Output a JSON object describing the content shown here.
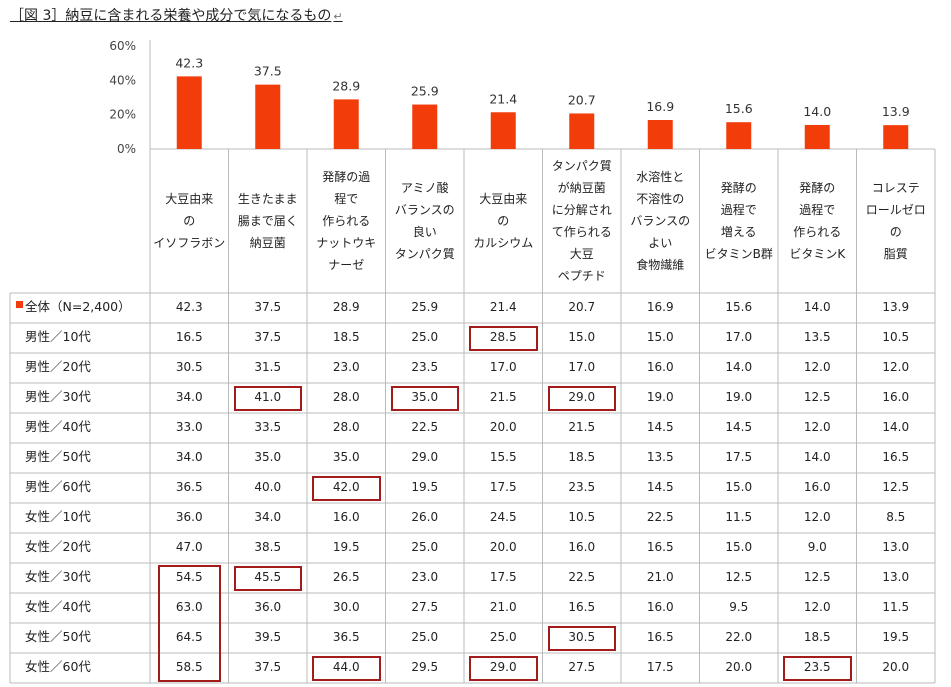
{
  "title": "［図 3］納豆に含まれる栄養や成分で気になるもの",
  "title_mark": "↵",
  "chart_data": {
    "type": "bar",
    "ylim": [
      0,
      60
    ],
    "yticks": [
      "0%",
      "20%",
      "40%",
      "60%"
    ],
    "yticks_values": [
      0,
      20,
      40,
      60
    ],
    "bar_color": "#f23c0a",
    "categories": [
      "大豆由来\nの\nイソフラボン",
      "生きたまま\n腸まで届く\n納豆菌",
      "発酵の過\n程で\n作られる\nナットウキ\nナーゼ",
      "アミノ酸\nバランスの\n良い\nタンパク質",
      "大豆由来\nの\nカルシウム",
      "タンパク質\nが納豆菌\nに分解され\nて作られる\n大豆\nペプチド",
      "水溶性と\n不溶性の\nバランスの\nよい\n食物繊維",
      "発酵の\n過程で\n増える\nビタミンB群",
      "発酵の\n過程で\n作られる\nビタミンK",
      "コレステ\nロールゼロ\nの\n脂質"
    ],
    "series": [
      {
        "name": "全体（N=2,400）",
        "values": [
          42.3,
          37.5,
          28.9,
          25.9,
          21.4,
          20.7,
          16.9,
          15.6,
          14.0,
          13.9
        ]
      }
    ],
    "bar_labels": [
      "42.3",
      "37.5",
      "28.9",
      "25.9",
      "21.4",
      "20.7",
      "16.9",
      "15.6",
      "14.0",
      "13.9"
    ],
    "table": {
      "rows": [
        {
          "label": "全体（N=2,400）",
          "legend": true,
          "values": [
            "42.3",
            "37.5",
            "28.9",
            "25.9",
            "21.4",
            "20.7",
            "16.9",
            "15.6",
            "14.0",
            "13.9"
          ]
        },
        {
          "label": "男性／10代",
          "values": [
            "16.5",
            "37.5",
            "18.5",
            "25.0",
            "28.5",
            "15.0",
            "15.0",
            "17.0",
            "13.5",
            "10.5"
          ]
        },
        {
          "label": "男性／20代",
          "values": [
            "30.5",
            "31.5",
            "23.0",
            "23.5",
            "17.0",
            "17.0",
            "16.0",
            "14.0",
            "12.0",
            "12.0"
          ]
        },
        {
          "label": "男性／30代",
          "values": [
            "34.0",
            "41.0",
            "28.0",
            "35.0",
            "21.5",
            "29.0",
            "19.0",
            "19.0",
            "12.5",
            "16.0"
          ]
        },
        {
          "label": "男性／40代",
          "values": [
            "33.0",
            "33.5",
            "28.0",
            "22.5",
            "20.0",
            "21.5",
            "14.5",
            "14.5",
            "12.0",
            "14.0"
          ]
        },
        {
          "label": "男性／50代",
          "values": [
            "34.0",
            "35.0",
            "35.0",
            "29.0",
            "15.5",
            "18.5",
            "13.5",
            "17.5",
            "14.0",
            "16.5"
          ]
        },
        {
          "label": "男性／60代",
          "values": [
            "36.5",
            "40.0",
            "42.0",
            "19.5",
            "17.5",
            "23.5",
            "14.5",
            "15.0",
            "16.0",
            "12.5"
          ]
        },
        {
          "label": "女性／10代",
          "values": [
            "36.0",
            "34.0",
            "16.0",
            "26.0",
            "24.5",
            "10.5",
            "22.5",
            "11.5",
            "12.0",
            "8.5"
          ]
        },
        {
          "label": "女性／20代",
          "values": [
            "47.0",
            "38.5",
            "19.5",
            "25.0",
            "20.0",
            "16.0",
            "16.5",
            "15.0",
            "9.0",
            "13.0"
          ]
        },
        {
          "label": "女性／30代",
          "values": [
            "54.5",
            "45.5",
            "26.5",
            "23.0",
            "17.5",
            "22.5",
            "21.0",
            "12.5",
            "12.5",
            "13.0"
          ]
        },
        {
          "label": "女性／40代",
          "values": [
            "63.0",
            "36.0",
            "30.0",
            "27.5",
            "21.0",
            "16.5",
            "16.0",
            "9.5",
            "12.0",
            "11.5"
          ]
        },
        {
          "label": "女性／50代",
          "values": [
            "64.5",
            "39.5",
            "36.5",
            "25.0",
            "25.0",
            "30.5",
            "16.5",
            "22.0",
            "18.5",
            "19.5"
          ]
        },
        {
          "label": "女性／60代",
          "values": [
            "58.5",
            "37.5",
            "44.0",
            "29.5",
            "29.0",
            "27.5",
            "17.5",
            "20.0",
            "23.5",
            "20.0"
          ]
        }
      ],
      "highlight_color": "#a31c1c",
      "highlights": [
        {
          "row": 1,
          "col": 4
        },
        {
          "row": 3,
          "col": 1
        },
        {
          "row": 3,
          "col": 3
        },
        {
          "row": 3,
          "col": 5
        },
        {
          "row": 6,
          "col": 2
        },
        {
          "row": 9,
          "col": 1
        },
        {
          "row": 11,
          "col": 5
        },
        {
          "row": 12,
          "col": 2
        },
        {
          "row": 12,
          "col": 4
        },
        {
          "row": 12,
          "col": 8
        }
      ],
      "highlight_spans": [
        {
          "row_start": 9,
          "row_end": 12,
          "col": 0
        }
      ]
    }
  }
}
